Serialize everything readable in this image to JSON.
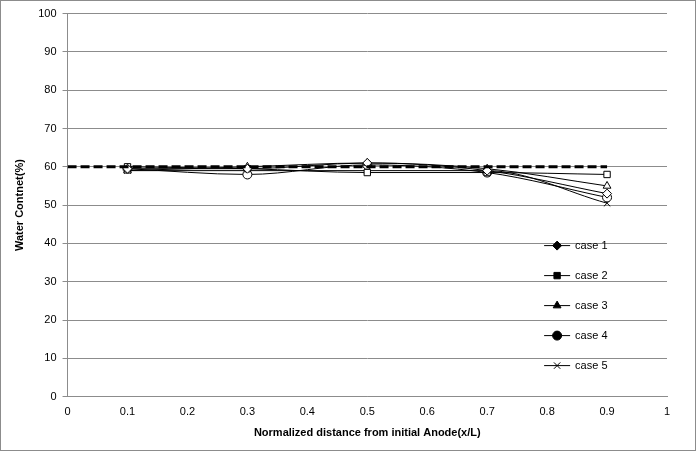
{
  "chart_data": {
    "type": "line",
    "x_label": "Normalized distance from initial Anode(x/L)",
    "y_label": "Water Contnet(%)",
    "x": [
      0.1,
      0.3,
      0.5,
      0.7,
      0.9
    ],
    "xlim": [
      0,
      1
    ],
    "xticks": [
      0,
      0.1,
      0.2,
      0.3,
      0.4,
      0.5,
      0.6,
      0.7,
      0.8,
      0.9,
      1
    ],
    "ylim": [
      0,
      100
    ],
    "yticks": [
      0,
      10,
      20,
      30,
      40,
      50,
      60,
      70,
      80,
      90,
      100
    ],
    "grid": "y",
    "legend": "lower right",
    "series": [
      {
        "name": "case 1",
        "color": "#000000",
        "marker": "diamond",
        "values": [
          59.5,
          59.5,
          61,
          59,
          53
        ]
      },
      {
        "name": "case 2",
        "color": "#000000",
        "marker": "square",
        "values": [
          60,
          59.5,
          58.5,
          58.5,
          58
        ]
      },
      {
        "name": "case 3",
        "color": "#000000",
        "marker": "triangle",
        "values": [
          59,
          60,
          61,
          59.5,
          55
        ]
      },
      {
        "name": "case 4",
        "color": "#000000",
        "marker": "circle",
        "values": [
          59.5,
          58,
          60.5,
          58.5,
          52
        ]
      },
      {
        "name": "case 5",
        "color": "#000000",
        "marker": "x",
        "values": [
          59,
          59,
          59,
          59,
          50.5
        ]
      },
      {
        "color": "#000000",
        "marker": "none",
        "line_style": "dashed",
        "x": [
          0,
          0.9
        ],
        "values": [
          60,
          60
        ]
      }
    ]
  }
}
